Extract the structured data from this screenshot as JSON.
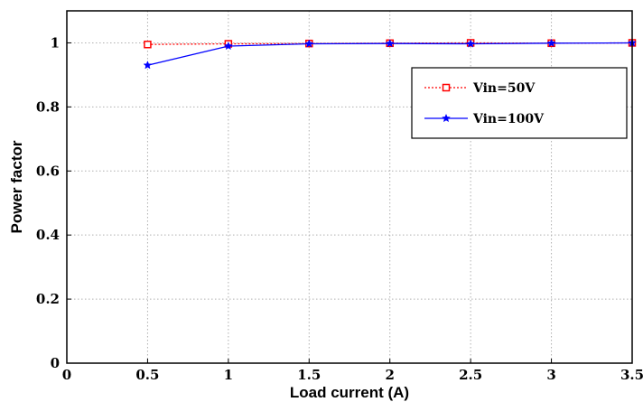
{
  "chart_data": {
    "type": "line",
    "title": "",
    "xlabel": "Load current (A)",
    "ylabel": "Power factor",
    "xlim": [
      0,
      3.5
    ],
    "ylim": [
      0,
      1.1
    ],
    "x_ticks": [
      0,
      0.5,
      1,
      1.5,
      2,
      2.5,
      3,
      3.5
    ],
    "x_tick_labels": [
      "0",
      "0.5",
      "1",
      "1.5",
      "2",
      "2.5",
      "3",
      "3.5"
    ],
    "y_ticks": [
      0,
      0.2,
      0.4,
      0.6,
      0.8,
      1
    ],
    "y_tick_labels": [
      "0",
      "0.2",
      "0.4",
      "0.6",
      "0.8",
      "1"
    ],
    "grid": true,
    "legend_position": "right",
    "series": [
      {
        "name": "Vin=50V",
        "color": "#ff0000",
        "marker": "square",
        "line_style": "dotted",
        "x": [
          0.5,
          1,
          1.5,
          2,
          2.5,
          3,
          3.5
        ],
        "y": [
          0.995,
          0.997,
          0.998,
          0.999,
          1.0,
          0.999,
          1.0
        ]
      },
      {
        "name": "Vin=100V",
        "color": "#0000ff",
        "marker": "star",
        "line_style": "solid",
        "x": [
          0.5,
          1,
          1.5,
          2,
          2.5,
          3,
          3.5
        ],
        "y": [
          0.93,
          0.99,
          0.997,
          0.998,
          0.997,
          0.999,
          1.0
        ]
      }
    ]
  }
}
